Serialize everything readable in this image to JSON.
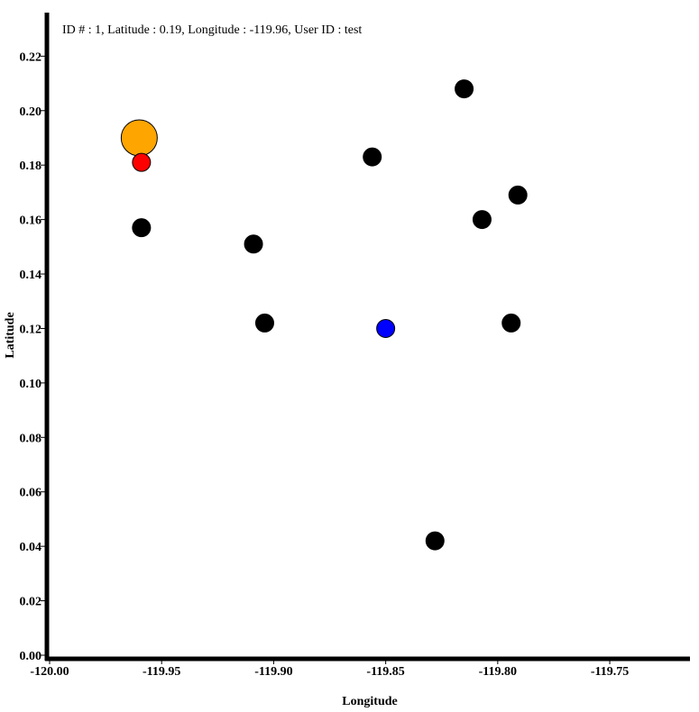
{
  "info": {
    "text": "ID # : 1, Latitude : 0.19, Longitude : -119.96, User ID : test"
  },
  "chart_data": {
    "type": "scatter",
    "title": "",
    "xlabel": "Longitude",
    "ylabel": "Latitude",
    "xlim": [
      -120.0,
      -119.715
    ],
    "ylim": [
      0.0,
      0.236
    ],
    "xticks": [
      -120.0,
      -119.95,
      -119.9,
      -119.85,
      -119.8,
      -119.75
    ],
    "xtick_labels": [
      "-120.00",
      "-119.95",
      "-119.90",
      "-119.85",
      "-119.80",
      "-119.75"
    ],
    "yticks": [
      0.0,
      0.02,
      0.04,
      0.06,
      0.08,
      0.1,
      0.12,
      0.14,
      0.16,
      0.18,
      0.2,
      0.22
    ],
    "ytick_labels": [
      "0.00",
      "0.02",
      "0.04",
      "0.06",
      "0.08",
      "0.10",
      "0.12",
      "0.14",
      "0.16",
      "0.18",
      "0.20",
      "0.22"
    ],
    "grid": false,
    "legend": "none",
    "points": [
      {
        "x": -119.96,
        "y": 0.19,
        "color": "#ffa500",
        "role": "selected",
        "size": "large"
      },
      {
        "x": -119.959,
        "y": 0.181,
        "color": "#ff0000",
        "role": "highlight",
        "size": "medium"
      },
      {
        "x": -119.959,
        "y": 0.157,
        "color": "#000000",
        "role": "default",
        "size": "medium"
      },
      {
        "x": -119.909,
        "y": 0.151,
        "color": "#000000",
        "role": "default",
        "size": "medium"
      },
      {
        "x": -119.904,
        "y": 0.122,
        "color": "#000000",
        "role": "default",
        "size": "medium"
      },
      {
        "x": -119.856,
        "y": 0.183,
        "color": "#000000",
        "role": "default",
        "size": "medium"
      },
      {
        "x": -119.85,
        "y": 0.12,
        "color": "#0000ff",
        "role": "user",
        "size": "medium"
      },
      {
        "x": -119.828,
        "y": 0.042,
        "color": "#000000",
        "role": "default",
        "size": "medium"
      },
      {
        "x": -119.815,
        "y": 0.208,
        "color": "#000000",
        "role": "default",
        "size": "medium"
      },
      {
        "x": -119.807,
        "y": 0.16,
        "color": "#000000",
        "role": "default",
        "size": "medium"
      },
      {
        "x": -119.794,
        "y": 0.122,
        "color": "#000000",
        "role": "default",
        "size": "medium"
      },
      {
        "x": -119.791,
        "y": 0.169,
        "color": "#000000",
        "role": "default",
        "size": "medium"
      }
    ]
  }
}
